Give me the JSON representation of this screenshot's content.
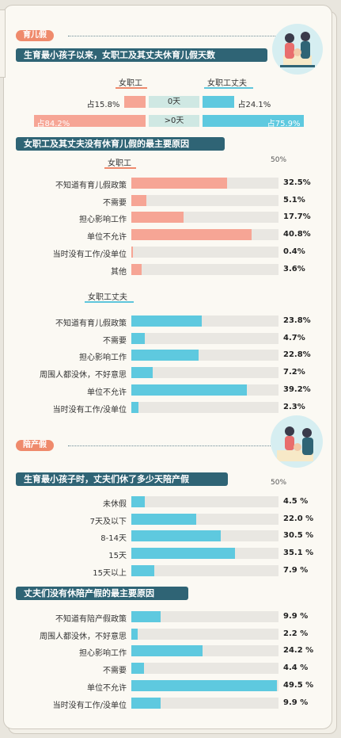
{
  "section1": {
    "pill": "育儿假",
    "title": "生育最小孩子以来，女职工及其丈夫休育儿假天数",
    "legend_female": "女职工",
    "legend_husband": "女职工丈夫",
    "rows": [
      {
        "category": "0天",
        "female_text": "占15.8%",
        "female": 15.8,
        "husband_text": "占24.1%",
        "husband": 24.1
      },
      {
        "category": ">0天",
        "female_text": "占84.2%",
        "female": 84.2,
        "husband_text": "占75.9%",
        "husband": 75.9
      }
    ]
  },
  "section2": {
    "title": "女职工及其丈夫没有休育儿假的最主要原因",
    "fifty": "50%",
    "female_label": "女职工",
    "husband_label": "女职工丈夫"
  },
  "section3": {
    "pill": "陪产假",
    "title": "生育最小孩子时，丈夫们休了多少天陪产假",
    "fifty": "50%"
  },
  "section4": {
    "title": "丈夫们没有休陪产假的最主要原因"
  },
  "colors": {
    "female": "#f6a595",
    "husband": "#5ec9df",
    "header": "#2f6475",
    "pill": "#ef8a6c"
  },
  "chart_data": [
    {
      "type": "bar",
      "title": "生育最小孩子以来，女职工及其丈夫休育儿假天数",
      "categories": [
        "0天",
        ">0天"
      ],
      "series": [
        {
          "name": "女职工",
          "values": [
            15.8,
            84.2
          ]
        },
        {
          "name": "女职工丈夫",
          "values": [
            24.1,
            75.9
          ]
        }
      ]
    },
    {
      "type": "bar",
      "title": "女职工及其丈夫没有休育儿假的最主要原因",
      "series": [
        {
          "name": "女职工",
          "categories": [
            "不知道有育儿假政策",
            "不需要",
            "担心影响工作",
            "单位不允许",
            "当时没有工作/没单位",
            "其他"
          ],
          "values": [
            32.5,
            5.1,
            17.7,
            40.8,
            0.4,
            3.6
          ],
          "labels": [
            "32.5%",
            "5.1%",
            "17.7%",
            "40.8%",
            "0.4%",
            "3.6%"
          ]
        },
        {
          "name": "女职工丈夫",
          "categories": [
            "不知道有育儿假政策",
            "不需要",
            "担心影响工作",
            "周围人都没休，不好意思",
            "单位不允许",
            "当时没有工作/没单位"
          ],
          "values": [
            23.8,
            4.7,
            22.8,
            7.2,
            39.2,
            2.3
          ],
          "labels": [
            "23.8%",
            "4.7%",
            "22.8%",
            "7.2%",
            "39.2%",
            "2.3%"
          ]
        }
      ],
      "xlim": [
        0,
        50
      ]
    },
    {
      "type": "bar",
      "title": "生育最小孩子时，丈夫们休了多少天陪产假",
      "categories": [
        "未休假",
        "7天及以下",
        "8-14天",
        "15天",
        "15天以上"
      ],
      "values": [
        4.5,
        22.0,
        30.5,
        35.1,
        7.9
      ],
      "labels": [
        "4.5 %",
        "22.0 %",
        "30.5 %",
        "35.1 %",
        "7.9 %"
      ],
      "xlim": [
        0,
        50
      ]
    },
    {
      "type": "bar",
      "title": "丈夫们没有休陪产假的最主要原因",
      "categories": [
        "不知道有陪产假政策",
        "周围人都没休，不好意思",
        "担心影响工作",
        "不需要",
        "单位不允许",
        "当时没有工作/没单位"
      ],
      "values": [
        9.9,
        2.2,
        24.2,
        4.4,
        49.5,
        9.9
      ],
      "labels": [
        "9.9 %",
        "2.2 %",
        "24.2 %",
        "4.4 %",
        "49.5 %",
        "9.9 %"
      ],
      "xlim": [
        0,
        50
      ]
    }
  ]
}
